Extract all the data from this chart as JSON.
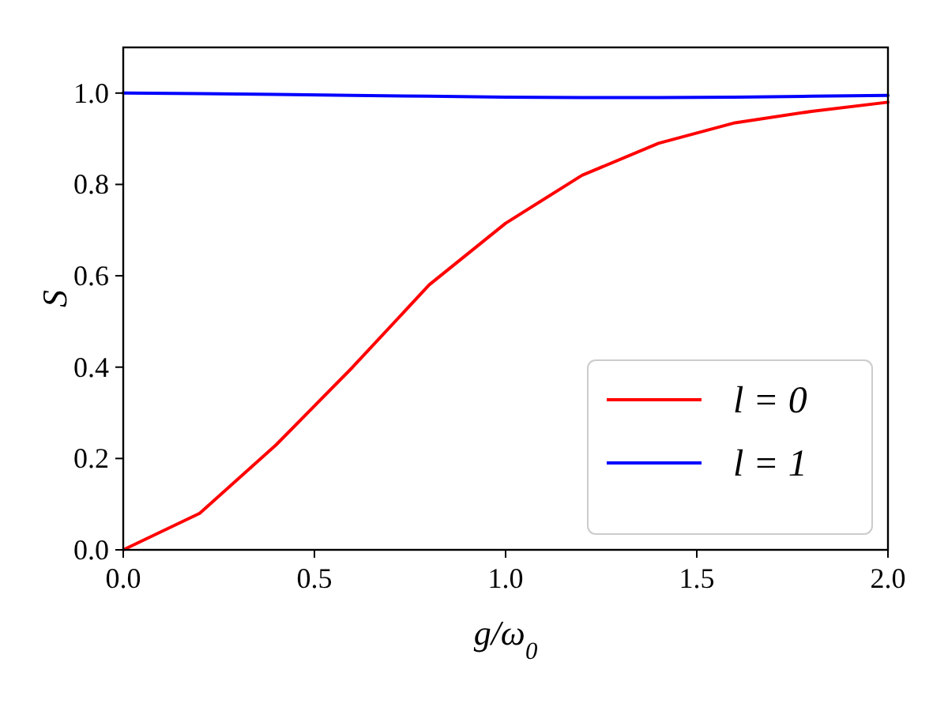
{
  "chart_data": {
    "type": "line",
    "xlabel": "g/ω$_{0}$",
    "ylabel": "S",
    "x": [
      0,
      0.2,
      0.4,
      0.6,
      0.8,
      1.0,
      1.2,
      1.4,
      1.6,
      1.8,
      2.0
    ],
    "series": [
      {
        "name": "l = 0",
        "color": "#ff0000",
        "values": [
          0,
          0.08,
          0.23,
          0.4,
          0.58,
          0.715,
          0.82,
          0.89,
          0.935,
          0.96,
          0.98
        ]
      },
      {
        "name": "l = 1",
        "color": "#0000ff",
        "values": [
          1.0,
          0.999,
          0.997,
          0.995,
          0.993,
          0.991,
          0.99,
          0.99,
          0.991,
          0.993,
          0.995
        ]
      }
    ],
    "xlim": [
      0,
      2
    ],
    "ylim": [
      0,
      1.1
    ],
    "xticks": [
      {
        "value": 0,
        "label": "0.0"
      },
      {
        "value": 0.5,
        "label": "0.5"
      },
      {
        "value": 1,
        "label": "1.0"
      },
      {
        "value": 1.5,
        "label": "1.5"
      },
      {
        "value": 2,
        "label": "2.0"
      }
    ],
    "yticks": [
      {
        "value": 0,
        "label": "0.0"
      },
      {
        "value": 0.2,
        "label": "0.2"
      },
      {
        "value": 0.4,
        "label": "0.4"
      },
      {
        "value": 0.6,
        "label": "0.6"
      },
      {
        "value": 0.8,
        "label": "0.8"
      },
      {
        "value": 1,
        "label": "1.0"
      }
    ],
    "legend": "bottom right",
    "grid": false,
    "marker": "none",
    "line_style": "solid"
  }
}
